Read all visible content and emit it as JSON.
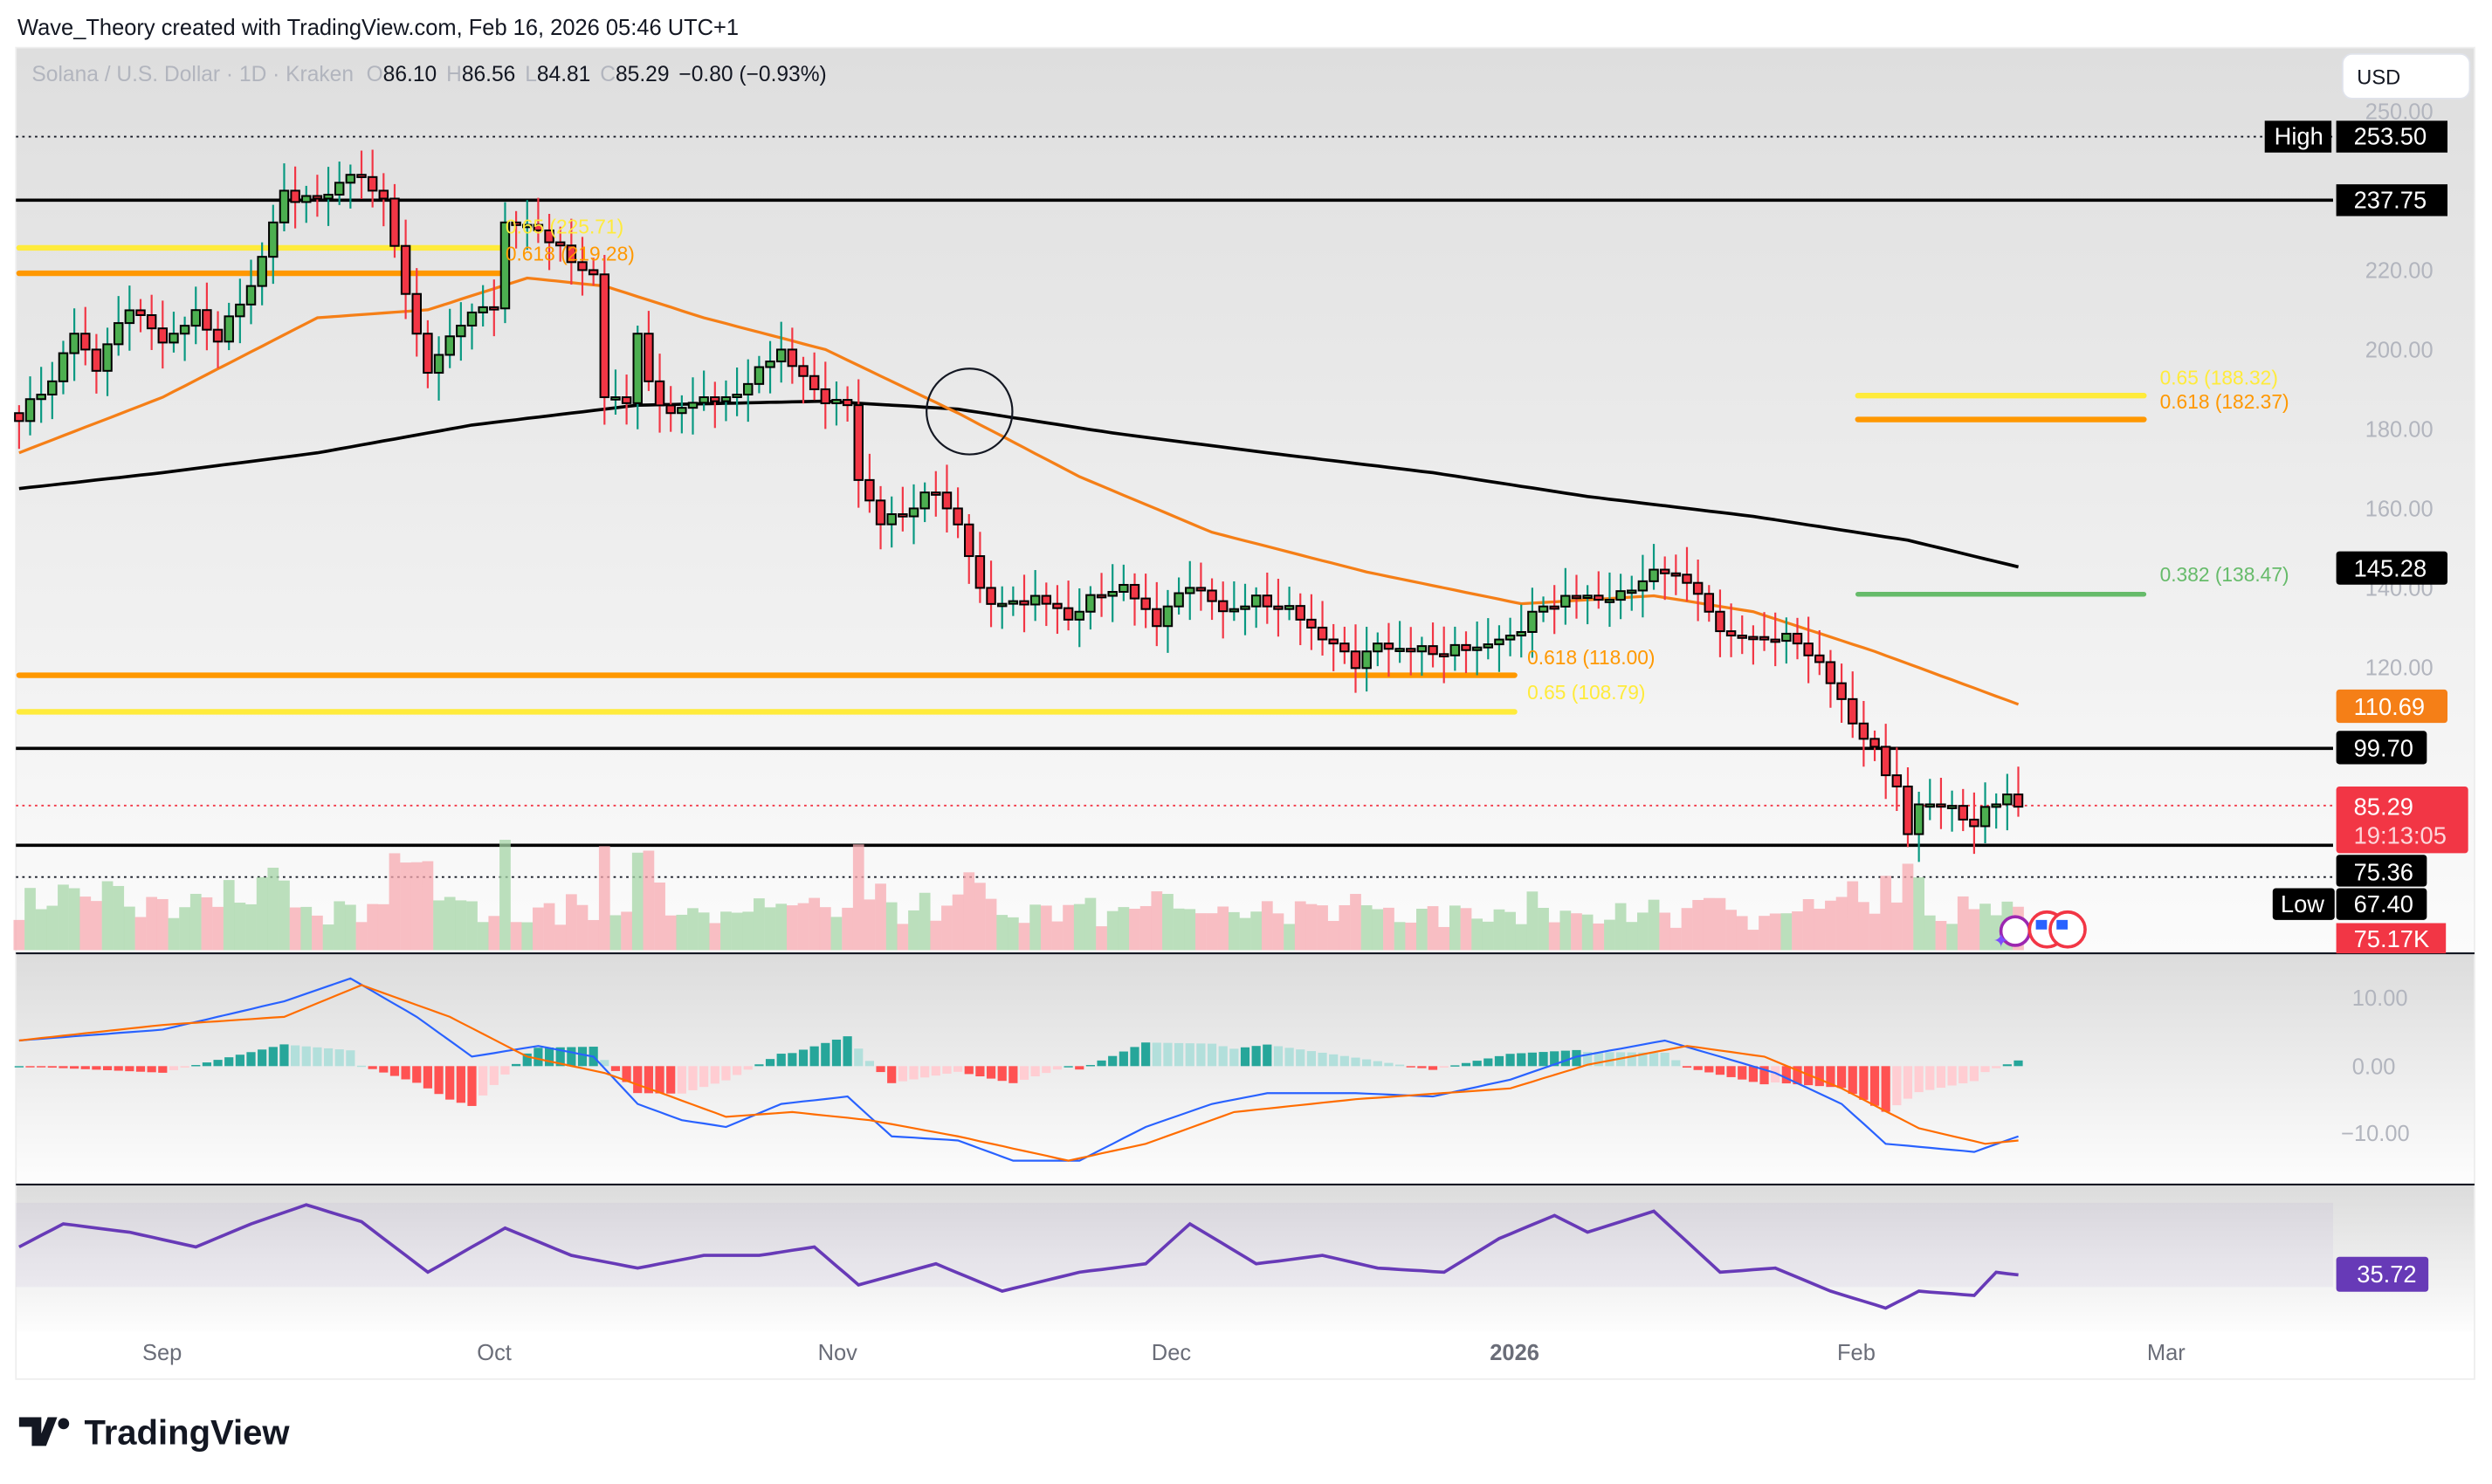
{
  "attribution": "Wave_Theory created with TradingView.com, Feb 16, 2026 05:46 UTC+1",
  "legend": {
    "symbol": "Solana / U.S. Dollar · 1D · Kraken",
    "open_label": "O",
    "open": "86.10",
    "high_label": "H",
    "high": "86.56",
    "low_label": "L",
    "low": "84.81",
    "close_label": "C",
    "close": "85.29",
    "change": "−0.80 (−0.93%)"
  },
  "currency_button": "USD",
  "price_axis": {
    "ticks": [
      "250.00",
      "220.00",
      "200.00",
      "180.00",
      "160.00",
      "140.00",
      "120.00"
    ]
  },
  "price_labels": {
    "high_tag": "High",
    "high_value": "253.50",
    "level_top": "237.75",
    "sma200": "145.28",
    "ema": "110.69",
    "level_mid": "99.70",
    "last_price": "85.29",
    "countdown": "19:13:05",
    "level_low": "75.36",
    "low_tag": "Low",
    "low_value": "67.40",
    "volume": "75.17K"
  },
  "fib_labels": {
    "left_065": "0.65 (225.71)",
    "left_0618": "0.618 (219.28)",
    "mid_0618": "0.618 (118.00)",
    "mid_065": "0.65 (108.79)",
    "right_065": "0.65 (188.32)",
    "right_0618": "0.618 (182.37)",
    "right_0382": "0.382 (138.47)"
  },
  "macd_axis": {
    "ticks": [
      "10.00",
      "0.00",
      "−10.00"
    ]
  },
  "rsi_value": "35.72",
  "time_axis": {
    "labels": [
      "Sep",
      "Oct",
      "Nov",
      "Dec",
      "2026",
      "Feb",
      "Mar"
    ]
  },
  "brand": "TradingView",
  "colors": {
    "up": "#4caf50",
    "down": "#f23645",
    "ema": "#f57f17",
    "sma": "#000000",
    "fib_yellow": "#ffeb3b",
    "fib_orange": "#ff9800",
    "fib_green": "#66bb6a",
    "macd": "#2962ff",
    "signal": "#ff6d00",
    "rsi": "#673ab7"
  },
  "chart_data": [
    {
      "type": "candlestick",
      "title": "Solana / U.S. Dollar · 1D · Kraken",
      "ylim": [
        60,
        255
      ],
      "closes": [
        [
          "2025-08-19",
          182
        ],
        [
          "2025-08-22",
          192
        ],
        [
          "2025-08-24",
          204
        ],
        [
          "2025-08-26",
          196
        ],
        [
          "2025-08-29",
          212
        ],
        [
          "2025-09-01",
          202
        ],
        [
          "2025-09-04",
          208
        ],
        [
          "2025-09-06",
          202
        ],
        [
          "2025-09-09",
          216
        ],
        [
          "2025-09-12",
          240
        ],
        [
          "2025-09-15",
          238
        ],
        [
          "2025-09-18",
          244
        ],
        [
          "2025-09-21",
          238
        ],
        [
          "2025-09-22",
          224
        ],
        [
          "2025-09-25",
          194
        ],
        [
          "2025-09-28",
          208
        ],
        [
          "2025-10-01",
          212
        ],
        [
          "2025-10-02",
          232
        ],
        [
          "2025-10-05",
          230
        ],
        [
          "2025-10-07",
          224
        ],
        [
          "2025-10-10",
          218
        ],
        [
          "2025-10-11",
          188
        ],
        [
          "2025-10-13",
          188
        ],
        [
          "2025-10-14",
          204
        ],
        [
          "2025-10-15",
          192
        ],
        [
          "2025-10-17",
          184
        ],
        [
          "2025-10-20",
          188
        ],
        [
          "2025-10-22",
          186
        ],
        [
          "2025-10-25",
          194
        ],
        [
          "2025-10-27",
          200
        ],
        [
          "2025-10-30",
          190
        ],
        [
          "2025-11-02",
          186
        ],
        [
          "2025-11-03",
          168
        ],
        [
          "2025-11-05",
          156
        ],
        [
          "2025-11-07",
          158
        ],
        [
          "2025-11-10",
          164
        ],
        [
          "2025-11-12",
          156
        ],
        [
          "2025-11-14",
          140
        ],
        [
          "2025-11-16",
          136
        ],
        [
          "2025-11-19",
          138
        ],
        [
          "2025-11-22",
          132
        ],
        [
          "2025-11-25",
          138
        ],
        [
          "2025-11-27",
          140
        ],
        [
          "2025-11-30",
          132
        ],
        [
          "2025-12-03",
          142
        ],
        [
          "2025-12-06",
          134
        ],
        [
          "2025-12-09",
          136
        ],
        [
          "2025-12-12",
          134
        ],
        [
          "2025-12-15",
          128
        ],
        [
          "2025-12-18",
          122
        ],
        [
          "2025-12-20",
          126
        ],
        [
          "2025-12-23",
          124
        ],
        [
          "2025-12-26",
          123
        ],
        [
          "2025-12-29",
          125
        ],
        [
          "2026-01-01",
          128
        ],
        [
          "2026-01-03",
          134
        ],
        [
          "2026-01-06",
          138
        ],
        [
          "2026-01-08",
          137
        ],
        [
          "2026-01-11",
          137
        ],
        [
          "2026-01-14",
          144
        ],
        [
          "2026-01-17",
          143
        ],
        [
          "2026-01-19",
          134
        ],
        [
          "2026-01-21",
          128
        ],
        [
          "2026-01-24",
          127
        ],
        [
          "2026-01-27",
          126
        ],
        [
          "2026-01-29",
          120
        ],
        [
          "2026-01-31",
          112
        ],
        [
          "2026-02-02",
          102
        ],
        [
          "2026-02-03",
          100
        ],
        [
          "2026-02-05",
          90
        ],
        [
          "2026-02-06",
          78
        ],
        [
          "2026-02-07",
          86
        ],
        [
          "2026-02-09",
          85
        ],
        [
          "2026-02-12",
          80
        ],
        [
          "2026-02-13",
          83
        ],
        [
          "2026-02-15",
          88
        ],
        [
          "2026-02-16",
          85.29
        ]
      ],
      "ema": [
        [
          "2025-08-19",
          174
        ],
        [
          "2025-09-01",
          188
        ],
        [
          "2025-09-15",
          208
        ],
        [
          "2025-09-25",
          210
        ],
        [
          "2025-10-04",
          218
        ],
        [
          "2025-10-11",
          216
        ],
        [
          "2025-10-20",
          208
        ],
        [
          "2025-10-31",
          200
        ],
        [
          "2025-11-12",
          184
        ],
        [
          "2025-11-23",
          168
        ],
        [
          "2025-12-05",
          154
        ],
        [
          "2025-12-19",
          144
        ],
        [
          "2026-01-02",
          136
        ],
        [
          "2026-01-14",
          138
        ],
        [
          "2026-01-23",
          134
        ],
        [
          "2026-02-03",
          124
        ],
        [
          "2026-02-16",
          110.69
        ]
      ],
      "sma": [
        [
          "2025-08-19",
          165
        ],
        [
          "2025-09-01",
          169
        ],
        [
          "2025-09-15",
          174
        ],
        [
          "2025-09-29",
          181
        ],
        [
          "2025-10-14",
          186
        ],
        [
          "2025-10-31",
          187
        ],
        [
          "2025-11-12",
          185
        ],
        [
          "2025-11-26",
          179
        ],
        [
          "2025-12-10",
          174
        ],
        [
          "2025-12-25",
          169
        ],
        [
          "2026-01-08",
          163
        ],
        [
          "2026-01-23",
          158
        ],
        [
          "2026-02-06",
          152
        ],
        [
          "2026-02-16",
          145.28
        ]
      ],
      "horizontal_levels": [
        253.5,
        237.75,
        99.7,
        75.36,
        67.4,
        85.29
      ],
      "fib_levels": [
        {
          "label": "0.65 (225.71)",
          "value": 225.71,
          "from": "2025-08-19",
          "to": "2025-10-02",
          "color": "yellow"
        },
        {
          "label": "0.618 (219.28)",
          "value": 219.28,
          "from": "2025-08-19",
          "to": "2025-10-02",
          "color": "orange"
        },
        {
          "label": "0.618 (118.00)",
          "value": 118.0,
          "from": "2025-08-19",
          "to": "2026-01-01",
          "color": "orange"
        },
        {
          "label": "0.65 (108.79)",
          "value": 108.79,
          "from": "2025-08-19",
          "to": "2026-01-01",
          "color": "yellow"
        },
        {
          "label": "0.65 (188.32)",
          "value": 188.32,
          "from": "2026-02-01",
          "to": "2026-02-27",
          "color": "yellow"
        },
        {
          "label": "0.618 (182.37)",
          "value": 182.37,
          "from": "2026-02-01",
          "to": "2026-02-27",
          "color": "orange"
        },
        {
          "label": "0.382 (138.47)",
          "value": 138.47,
          "from": "2026-02-01",
          "to": "2026-02-27",
          "color": "green"
        }
      ],
      "circle_marker": {
        "date": "2025-11-13",
        "value": 185
      }
    },
    {
      "type": "line",
      "ylim": [
        -15,
        14
      ],
      "macd": [
        [
          "2025-08-19",
          3.8
        ],
        [
          "2025-09-01",
          5.4
        ],
        [
          "2025-09-12",
          9.6
        ],
        [
          "2025-09-18",
          13
        ],
        [
          "2025-09-24",
          7.3
        ],
        [
          "2025-09-29",
          1.4
        ],
        [
          "2025-10-05",
          3
        ],
        [
          "2025-10-10",
          1.4
        ],
        [
          "2025-10-14",
          -5.6
        ],
        [
          "2025-10-18",
          -8
        ],
        [
          "2025-10-22",
          -9
        ],
        [
          "2025-10-27",
          -5.6
        ],
        [
          "2025-11-02",
          -4.5
        ],
        [
          "2025-11-06",
          -10.4
        ],
        [
          "2025-11-12",
          -11
        ],
        [
          "2025-11-17",
          -14
        ],
        [
          "2025-11-23",
          -14
        ],
        [
          "2025-11-29",
          -9
        ],
        [
          "2025-12-05",
          -5.6
        ],
        [
          "2025-12-10",
          -4
        ],
        [
          "2025-12-18",
          -4
        ],
        [
          "2025-12-25",
          -4.5
        ],
        [
          "2026-01-01",
          -2
        ],
        [
          "2026-01-07",
          1.4
        ],
        [
          "2026-01-15",
          3.8
        ],
        [
          "2026-01-20",
          1.4
        ],
        [
          "2026-01-25",
          -1
        ],
        [
          "2026-01-31",
          -5.6
        ],
        [
          "2026-02-04",
          -11.5
        ],
        [
          "2026-02-12",
          -12.7
        ],
        [
          "2026-02-16",
          -10.4
        ]
      ],
      "signal": [
        [
          "2025-08-19",
          3.8
        ],
        [
          "2025-09-01",
          6.1
        ],
        [
          "2025-09-12",
          7.3
        ],
        [
          "2025-09-19",
          12
        ],
        [
          "2025-09-27",
          7.3
        ],
        [
          "2025-10-04",
          1.4
        ],
        [
          "2025-10-11",
          -1
        ],
        [
          "2025-10-17",
          -4.5
        ],
        [
          "2025-10-22",
          -7.5
        ],
        [
          "2025-10-28",
          -6.8
        ],
        [
          "2025-11-04",
          -8
        ],
        [
          "2025-11-12",
          -10.4
        ],
        [
          "2025-11-22",
          -14
        ],
        [
          "2025-11-29",
          -11.5
        ],
        [
          "2025-12-07",
          -6.8
        ],
        [
          "2025-12-18",
          -4.9
        ],
        [
          "2026-01-01",
          -3.3
        ],
        [
          "2026-01-08",
          0.2
        ],
        [
          "2026-01-17",
          3
        ],
        [
          "2026-01-24",
          1.4
        ],
        [
          "2026-01-31",
          -3.3
        ],
        [
          "2026-02-07",
          -9.2
        ],
        [
          "2026-02-13",
          -11.5
        ],
        [
          "2026-02-16",
          -11
        ]
      ]
    },
    {
      "type": "line",
      "ylim": [
        0,
        100
      ],
      "band": [
        30,
        70
      ],
      "rsi": [
        [
          "2025-08-19",
          49
        ],
        [
          "2025-08-23",
          60
        ],
        [
          "2025-08-29",
          56
        ],
        [
          "2025-09-04",
          49
        ],
        [
          "2025-09-09",
          60
        ],
        [
          "2025-09-14",
          69
        ],
        [
          "2025-09-19",
          61
        ],
        [
          "2025-09-25",
          37
        ],
        [
          "2025-10-02",
          58
        ],
        [
          "2025-10-08",
          45
        ],
        [
          "2025-10-14",
          39
        ],
        [
          "2025-10-20",
          45
        ],
        [
          "2025-10-25",
          45
        ],
        [
          "2025-10-30",
          49
        ],
        [
          "2025-11-03",
          31
        ],
        [
          "2025-11-10",
          41
        ],
        [
          "2025-11-16",
          28
        ],
        [
          "2025-11-23",
          37
        ],
        [
          "2025-11-29",
          41
        ],
        [
          "2025-12-03",
          60
        ],
        [
          "2025-12-09",
          41
        ],
        [
          "2025-12-15",
          45
        ],
        [
          "2025-12-20",
          39
        ],
        [
          "2025-12-26",
          37
        ],
        [
          "2025-12-31",
          53
        ],
        [
          "2026-01-05",
          64
        ],
        [
          "2026-01-08",
          56
        ],
        [
          "2026-01-14",
          66
        ],
        [
          "2026-01-20",
          37
        ],
        [
          "2026-01-25",
          39
        ],
        [
          "2026-01-30",
          28
        ],
        [
          "2026-02-04",
          20
        ],
        [
          "2026-02-07",
          28
        ],
        [
          "2026-02-12",
          26
        ],
        [
          "2026-02-14",
          37
        ],
        [
          "2026-02-16",
          35.72
        ]
      ]
    }
  ]
}
